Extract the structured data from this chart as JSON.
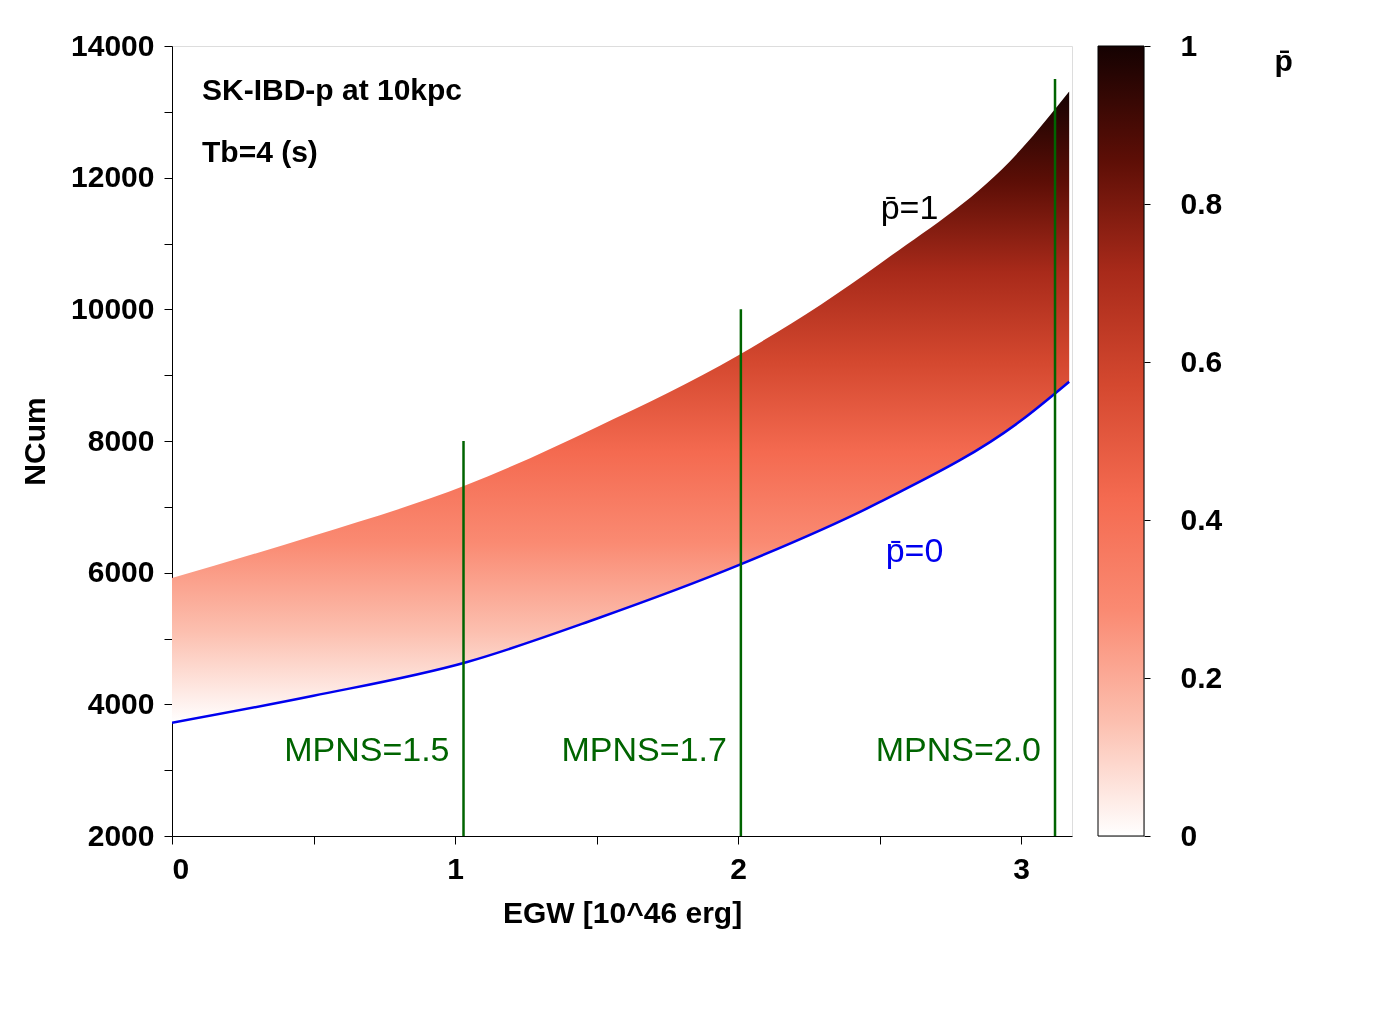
{
  "chart_data": {
    "type": "area",
    "annotations": [
      "SK-IBD-p at 10kpc",
      "Tb=4 (s)"
    ],
    "xlabel": "EGW [10^46 erg]",
    "ylabel": "NCum",
    "clabel": "p̄",
    "xlim": [
      0,
      3.18
    ],
    "ylim": [
      2000,
      14000
    ],
    "xticks": [
      0,
      {
        "value": 0.5,
        "label": null
      },
      1,
      {
        "value": 1.5,
        "label": null
      },
      2,
      {
        "value": 2.5,
        "label": null
      },
      3
    ],
    "yticks": [
      2000,
      {
        "value": 3000,
        "label": null
      },
      4000,
      {
        "value": 5000,
        "label": null
      },
      6000,
      {
        "value": 7000,
        "label": null
      },
      8000,
      {
        "value": 9000,
        "label": null
      },
      10000,
      {
        "value": 11000,
        "label": null
      },
      12000,
      {
        "value": 13000,
        "label": null
      },
      14000
    ],
    "clim": [
      0,
      1
    ],
    "cticks": [
      0,
      0.2,
      0.4,
      0.6,
      0.8,
      1
    ],
    "grid": false,
    "series": [
      {
        "name": "p̄=1",
        "colors": [
          "#ffffff",
          "#fcc0b0",
          "#fa8a72",
          "#f46a50",
          "#d4482f",
          "#a82a1a",
          "#5c0e06",
          "#150202"
        ],
        "x": [
          0,
          0.5,
          1.04,
          1.5,
          2,
          2.5,
          3,
          3.17
        ],
        "values": [
          5920,
          6560,
          7330,
          8210,
          9300,
          10690,
          12430,
          13310
        ]
      },
      {
        "type": "line",
        "name": "p̄=0",
        "color": "#0000ee",
        "x": [
          0,
          0.5,
          1.04,
          1.5,
          2,
          2.5,
          3,
          3.17
        ],
        "values": [
          3720,
          4130,
          4640,
          5300,
          6110,
          7070,
          8310,
          8900
        ]
      },
      {
        "type": "line",
        "name": "MPNS=1.5",
        "color": "#006400",
        "x": [
          1.03,
          1.03
        ],
        "values": [
          2000,
          8000
        ]
      },
      {
        "type": "line",
        "name": "MPNS=1.7",
        "color": "#006400",
        "x": [
          2.01,
          2.01
        ],
        "values": [
          2000,
          10000
        ]
      },
      {
        "type": "line",
        "name": "MPNS=2.0",
        "color": "#006400",
        "x": [
          3.12,
          3.12
        ],
        "values": [
          2000,
          13500
        ]
      }
    ]
  }
}
